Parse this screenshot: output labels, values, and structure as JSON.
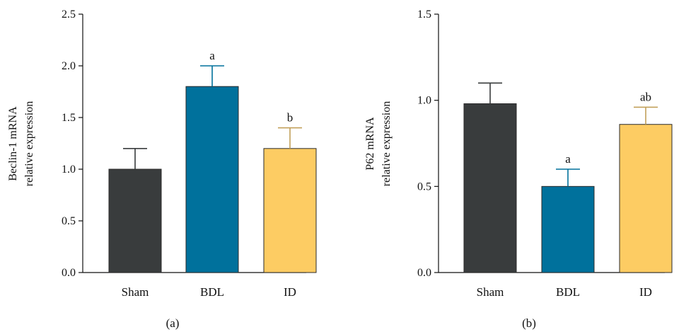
{
  "chart_data": [
    {
      "type": "bar",
      "panel_label": "(a)",
      "categories": [
        "Sham",
        "BDL",
        "ID"
      ],
      "values": [
        1.0,
        1.8,
        1.2
      ],
      "errors": [
        0.2,
        0.2,
        0.2
      ],
      "annotations": [
        "",
        "a",
        "b"
      ],
      "ylabel_line1": "Beclin-1 mRNA",
      "ylabel_line2": "relative expression",
      "ylim": [
        0,
        2.5
      ],
      "yticks": [
        "0.0",
        "0.5",
        "1.0",
        "1.5",
        "2.0",
        "2.5"
      ],
      "colors": [
        "#393c3d",
        "#00719c",
        "#fdcc63"
      ],
      "error_colors": [
        "#393c3d",
        "#00719c",
        "#c2a05a"
      ]
    },
    {
      "type": "bar",
      "panel_label": "(b)",
      "categories": [
        "Sham",
        "BDL",
        "ID"
      ],
      "values": [
        0.98,
        0.5,
        0.86
      ],
      "errors": [
        0.12,
        0.1,
        0.1
      ],
      "annotations": [
        "",
        "a",
        "ab"
      ],
      "ylabel_line1": "P62 mRNA",
      "ylabel_line2": "relative expression",
      "ylim": [
        0,
        1.5
      ],
      "yticks": [
        "0.0",
        "0.5",
        "1.0",
        "1.5"
      ],
      "colors": [
        "#393c3d",
        "#00719c",
        "#fdcc63"
      ],
      "error_colors": [
        "#393c3d",
        "#00719c",
        "#c2a05a"
      ]
    }
  ]
}
